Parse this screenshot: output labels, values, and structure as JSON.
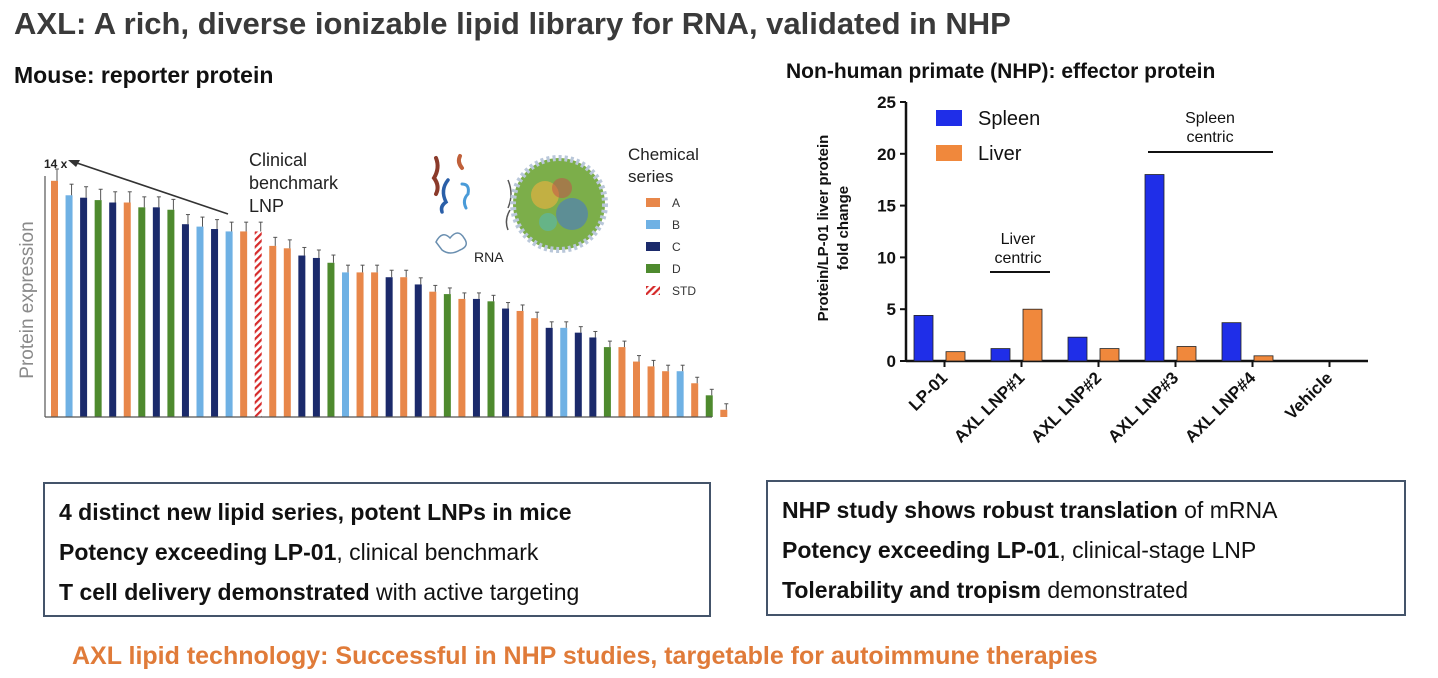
{
  "header": {
    "title": "AXL: A rich, diverse ionizable lipid library for RNA, validated in NHP",
    "mouse_title": "Mouse: reporter protein",
    "nhp_title": "Non-human primate (NHP): effector protein"
  },
  "colors": {
    "A": "#e8874a",
    "B": "#6fb1e4",
    "C": "#1b2a6b",
    "D": "#4e8a2e",
    "STD": "#d62b2b",
    "spleen": "#1f2ee8",
    "liver": "#f0883c",
    "footer": "#e07b39"
  },
  "chart_data": [
    {
      "type": "bar",
      "title": "Mouse: reporter protein",
      "ylabel": "Protein expression",
      "top_annotation": "14 x",
      "benchmark_label": [
        "Clinical",
        "benchmark",
        "LNP"
      ],
      "legend_title": [
        "Chemical",
        "series"
      ],
      "legend": [
        {
          "label": "A",
          "key": "A"
        },
        {
          "label": "B",
          "key": "B"
        },
        {
          "label": "C",
          "key": "C"
        },
        {
          "label": "D",
          "key": "D"
        },
        {
          "label": "STD",
          "key": "STD"
        }
      ],
      "illustration_label": "RNA",
      "ylim": [
        0,
        1
      ],
      "bars": [
        {
          "series": "A",
          "value": 0.98
        },
        {
          "series": "B",
          "value": 0.92
        },
        {
          "series": "C",
          "value": 0.91
        },
        {
          "series": "D",
          "value": 0.9
        },
        {
          "series": "C",
          "value": 0.89
        },
        {
          "series": "A",
          "value": 0.89
        },
        {
          "series": "D",
          "value": 0.87
        },
        {
          "series": "C",
          "value": 0.87
        },
        {
          "series": "D",
          "value": 0.86
        },
        {
          "series": "C",
          "value": 0.8
        },
        {
          "series": "B",
          "value": 0.79
        },
        {
          "series": "C",
          "value": 0.78
        },
        {
          "series": "B",
          "value": 0.77
        },
        {
          "series": "A",
          "value": 0.77
        },
        {
          "series": "STD",
          "value": 0.77
        },
        {
          "series": "A",
          "value": 0.71
        },
        {
          "series": "A",
          "value": 0.7
        },
        {
          "series": "C",
          "value": 0.67
        },
        {
          "series": "C",
          "value": 0.66
        },
        {
          "series": "D",
          "value": 0.64
        },
        {
          "series": "B",
          "value": 0.6
        },
        {
          "series": "A",
          "value": 0.6
        },
        {
          "series": "A",
          "value": 0.6
        },
        {
          "series": "C",
          "value": 0.58
        },
        {
          "series": "A",
          "value": 0.58
        },
        {
          "series": "C",
          "value": 0.55
        },
        {
          "series": "A",
          "value": 0.52
        },
        {
          "series": "D",
          "value": 0.51
        },
        {
          "series": "A",
          "value": 0.49
        },
        {
          "series": "C",
          "value": 0.49
        },
        {
          "series": "D",
          "value": 0.48
        },
        {
          "series": "C",
          "value": 0.45
        },
        {
          "series": "A",
          "value": 0.44
        },
        {
          "series": "A",
          "value": 0.41
        },
        {
          "series": "C",
          "value": 0.37
        },
        {
          "series": "B",
          "value": 0.37
        },
        {
          "series": "C",
          "value": 0.35
        },
        {
          "series": "C",
          "value": 0.33
        },
        {
          "series": "D",
          "value": 0.29
        },
        {
          "series": "A",
          "value": 0.29
        },
        {
          "series": "A",
          "value": 0.23
        },
        {
          "series": "A",
          "value": 0.21
        },
        {
          "series": "A",
          "value": 0.19
        },
        {
          "series": "B",
          "value": 0.19
        },
        {
          "series": "A",
          "value": 0.14
        },
        {
          "series": "D",
          "value": 0.09
        },
        {
          "series": "A",
          "value": 0.03
        }
      ]
    },
    {
      "type": "bar",
      "title": "Non-human primate (NHP): effector protein",
      "ylabel": [
        "Protein/LP-01 liver protein",
        "fold change"
      ],
      "ylim": [
        0,
        25
      ],
      "yticks": [
        0,
        5,
        10,
        15,
        20,
        25
      ],
      "categories": [
        "LP-01",
        "AXL LNP#1",
        "AXL LNP#2",
        "AXL LNP#3",
        "AXL LNP#4",
        "Vehicle"
      ],
      "series": [
        {
          "name": "Spleen",
          "key": "spleen",
          "values": [
            4.4,
            1.2,
            2.3,
            18.0,
            3.7,
            0
          ]
        },
        {
          "name": "Liver",
          "key": "liver",
          "values": [
            0.9,
            5.0,
            1.2,
            1.4,
            0.5,
            0
          ]
        }
      ],
      "annotations": [
        {
          "lines": [
            "Liver",
            "centric"
          ]
        },
        {
          "lines": [
            "Spleen",
            "centric"
          ]
        }
      ]
    }
  ],
  "left_box": {
    "line1_bold": "4 distinct new lipid series, potent LNPs in mice",
    "line1_rest": "",
    "line2_bold": "Potency exceeding LP-01",
    "line2_rest": ", clinical benchmark",
    "line3_bold": "T cell delivery demonstrated",
    "line3_rest": " with active targeting"
  },
  "right_box": {
    "line1_bold": "NHP study shows robust translation",
    "line1_rest": " of mRNA",
    "line2_bold": "Potency exceeding LP-01",
    "line2_rest": ", clinical-stage LNP",
    "line3_bold": "Tolerability and tropism",
    "line3_rest": " demonstrated"
  },
  "footer": "AXL lipid technology: Successful in NHP studies, targetable for autoimmune therapies"
}
